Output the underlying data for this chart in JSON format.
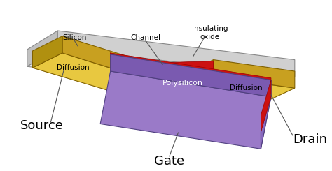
{
  "bg_color": "#ffffff",
  "labels": {
    "gate": "Gate",
    "drain": "Drain",
    "source": "Source",
    "polysilicon": "Polysilicon",
    "diffusion_left": "Diffusion",
    "diffusion_right": "Diffusion",
    "silicon": "Silicon",
    "channel": "Channel",
    "insulating_oxide": "Insulating\noxide"
  },
  "colors": {
    "sil_top": "#e8e8e8",
    "sil_front": "#d0d0d0",
    "sil_left": "#c0c0c0",
    "diff_top": "#e8c840",
    "diff_front": "#c8a020",
    "diff_side": "#b09010",
    "gate_top": "#9a7ac8",
    "gate_front": "#7a5ab0",
    "gate_right": "#8868be",
    "oxide_red": "#cc1111",
    "outline_gray": "#888888",
    "outline_gold": "#806000",
    "outline_purple": "#504080"
  }
}
